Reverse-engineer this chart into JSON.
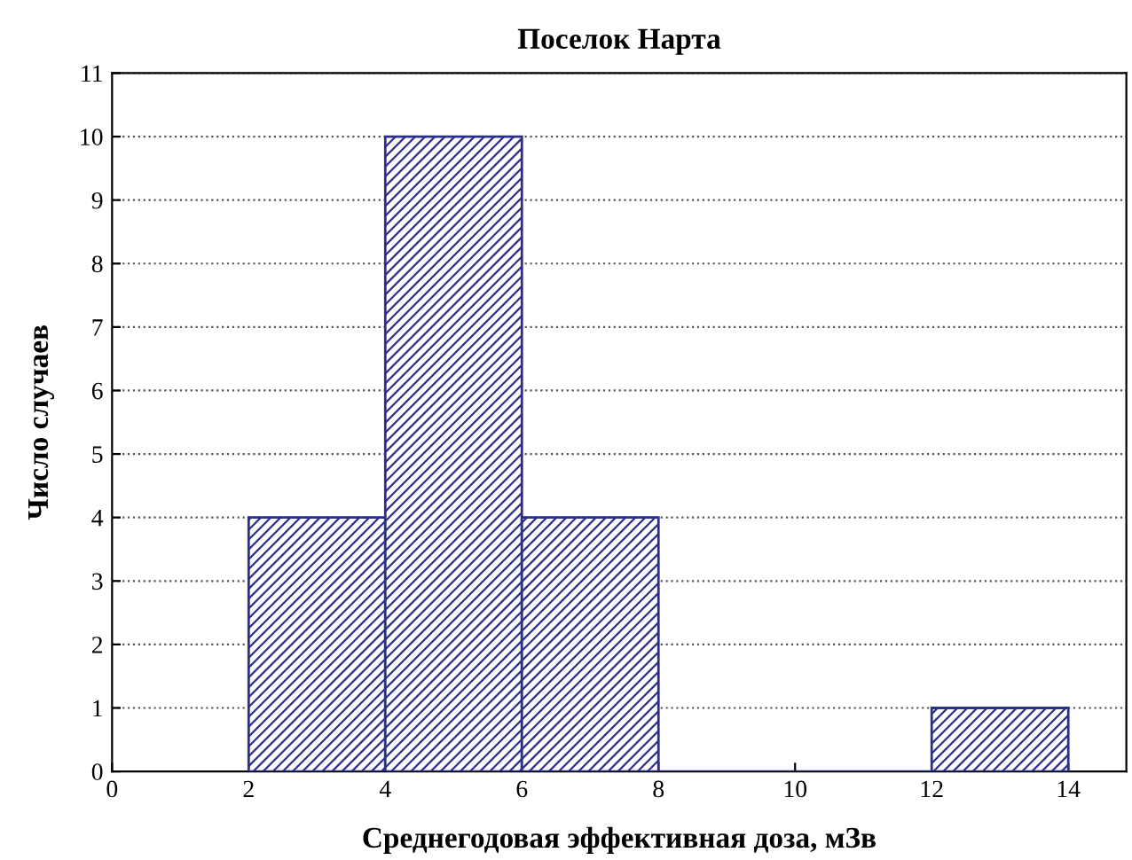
{
  "chart_data": {
    "type": "histogram",
    "title": "Поселок Нарта",
    "xlabel": "Среднегодовая эффективная доза, мЗв",
    "ylabel": "Число случаев",
    "bins": [
      2,
      4,
      6,
      8,
      10,
      12,
      14
    ],
    "values": [
      4,
      10,
      4,
      0,
      0,
      1
    ],
    "color": "#2b2e8c",
    "xlim": [
      0,
      14.85
    ],
    "xticks": [
      0,
      2,
      4,
      6,
      8,
      10,
      12,
      14
    ],
    "ylim": [
      0,
      11
    ],
    "yticks": [
      0,
      1,
      2,
      3,
      4,
      5,
      6,
      7,
      8,
      9,
      10,
      11
    ],
    "grid": "y"
  }
}
